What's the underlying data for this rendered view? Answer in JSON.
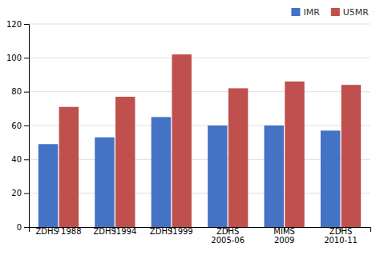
{
  "chart_data": {
    "type": "bar",
    "categories": [
      "ZDHS 1988",
      "ZDHS1994",
      "ZDHS1999",
      "ZDHS\n2005-06",
      "MIMS\n2009",
      "ZDHS\n2010-11"
    ],
    "series": [
      {
        "name": "IMR",
        "color": "#4472c4",
        "values": [
          49,
          53,
          65,
          60,
          60,
          57
        ]
      },
      {
        "name": "U5MR",
        "color": "#c0504d",
        "values": [
          71,
          77,
          102,
          82,
          86,
          84
        ]
      }
    ],
    "ylim": [
      0,
      120
    ],
    "yticks": [
      0,
      20,
      40,
      60,
      80,
      100,
      120
    ],
    "grid": true,
    "legend": "upper right"
  }
}
